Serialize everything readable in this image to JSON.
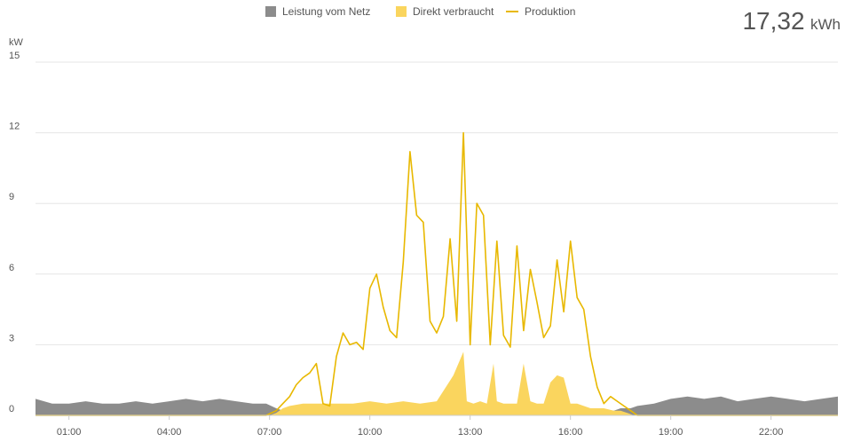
{
  "summary": {
    "total_value": "17,32",
    "total_unit": "kWh"
  },
  "colors": {
    "grid_import": "#8c8c8c",
    "direct": "#fad55e",
    "production": "#e8b800",
    "gridline": "#e6e6e6"
  },
  "chart_data": {
    "type": "area",
    "ylabel": "kW",
    "ylim": [
      0,
      15
    ],
    "xlim": [
      0,
      24
    ],
    "y_ticks": [
      {
        "value": 0,
        "label": "0"
      },
      {
        "value": 3,
        "label": "3"
      },
      {
        "value": 6,
        "label": "6"
      },
      {
        "value": 9,
        "label": "9"
      },
      {
        "value": 12,
        "label": "12"
      },
      {
        "value": 15,
        "label": "15"
      }
    ],
    "x_ticks": [
      {
        "value": 1,
        "label": "01:00"
      },
      {
        "value": 4,
        "label": "04:00"
      },
      {
        "value": 7,
        "label": "07:00"
      },
      {
        "value": 10,
        "label": "10:00"
      },
      {
        "value": 13,
        "label": "13:00"
      },
      {
        "value": 16,
        "label": "16:00"
      },
      {
        "value": 19,
        "label": "19:00"
      },
      {
        "value": 22,
        "label": "22:00"
      }
    ],
    "legend_position": "top",
    "series": [
      {
        "name": "Leistung vom Netz",
        "kind": "area",
        "x": [
          0,
          0.5,
          1,
          1.5,
          2,
          2.5,
          3,
          3.5,
          4,
          4.5,
          5,
          5.5,
          6,
          6.5,
          6.9,
          7.2,
          7.4,
          7.6,
          8.0,
          8.5,
          9.0,
          9.5,
          10,
          10.5,
          11,
          11.5,
          12,
          12.5,
          13,
          13.5,
          14,
          14.5,
          15,
          15.5,
          16,
          16.5,
          17,
          17.3,
          17.5,
          17.8,
          18.0,
          18.5,
          19,
          19.5,
          20,
          20.5,
          21,
          21.5,
          22,
          22.5,
          23,
          23.5,
          24
        ],
        "y": [
          0.7,
          0.5,
          0.5,
          0.6,
          0.5,
          0.5,
          0.6,
          0.5,
          0.6,
          0.7,
          0.6,
          0.7,
          0.6,
          0.5,
          0.5,
          0.3,
          0.2,
          0.15,
          0.15,
          0.1,
          0.1,
          0.1,
          0.05,
          0.05,
          0.05,
          0.05,
          0.05,
          0.05,
          0.05,
          0.05,
          0.05,
          0.05,
          0.05,
          0.05,
          0.05,
          0.05,
          0.1,
          0.2,
          0.3,
          0.3,
          0.4,
          0.5,
          0.7,
          0.8,
          0.7,
          0.8,
          0.6,
          0.7,
          0.8,
          0.7,
          0.6,
          0.7,
          0.8
        ]
      },
      {
        "name": "Direkt verbraucht",
        "kind": "area",
        "x": [
          0,
          7.0,
          7.2,
          7.4,
          7.6,
          8.0,
          8.5,
          9.0,
          9.5,
          10,
          10.5,
          11,
          11.5,
          12,
          12.5,
          12.8,
          12.9,
          13.1,
          13.3,
          13.5,
          13.7,
          13.8,
          14.0,
          14.2,
          14.4,
          14.6,
          14.8,
          15.0,
          15.2,
          15.4,
          15.6,
          15.8,
          16.0,
          16.2,
          16.4,
          16.6,
          17.0,
          17.3,
          17.5,
          17.7,
          17.9,
          18.0,
          24
        ],
        "y": [
          0,
          0,
          0.1,
          0.3,
          0.4,
          0.5,
          0.5,
          0.5,
          0.5,
          0.6,
          0.5,
          0.6,
          0.5,
          0.6,
          1.7,
          2.7,
          0.6,
          0.5,
          0.6,
          0.5,
          2.2,
          0.6,
          0.5,
          0.5,
          0.5,
          2.2,
          0.6,
          0.5,
          0.5,
          1.4,
          1.7,
          1.6,
          0.5,
          0.5,
          0.4,
          0.3,
          0.3,
          0.2,
          0.2,
          0.1,
          0,
          0,
          0
        ]
      },
      {
        "name": "Produktion",
        "kind": "line",
        "x": [
          0,
          6.9,
          7.2,
          7.4,
          7.6,
          7.8,
          8.0,
          8.2,
          8.4,
          8.6,
          8.8,
          9.0,
          9.2,
          9.4,
          9.6,
          9.8,
          10.0,
          10.2,
          10.4,
          10.6,
          10.8,
          11.0,
          11.2,
          11.4,
          11.6,
          11.8,
          12.0,
          12.2,
          12.4,
          12.6,
          12.8,
          13.0,
          13.2,
          13.4,
          13.6,
          13.8,
          14.0,
          14.2,
          14.4,
          14.6,
          14.8,
          15.0,
          15.2,
          15.4,
          15.6,
          15.8,
          16.0,
          16.2,
          16.4,
          16.6,
          16.8,
          17.0,
          17.2,
          17.4,
          17.6,
          17.8,
          18.0,
          24
        ],
        "y": [
          0,
          0,
          0.2,
          0.5,
          0.8,
          1.3,
          1.6,
          1.8,
          2.2,
          0.5,
          0.4,
          2.5,
          3.5,
          3.0,
          3.1,
          2.8,
          5.4,
          6.0,
          4.6,
          3.6,
          3.3,
          6.5,
          11.2,
          8.5,
          8.2,
          4.0,
          3.5,
          4.2,
          7.5,
          4.0,
          12.0,
          3.0,
          9.0,
          8.5,
          3.0,
          7.4,
          3.4,
          2.9,
          7.2,
          3.6,
          6.2,
          4.8,
          3.3,
          3.8,
          6.6,
          4.4,
          7.4,
          5.0,
          4.5,
          2.5,
          1.2,
          0.5,
          0.8,
          0.6,
          0.4,
          0.2,
          0,
          0
        ]
      }
    ]
  }
}
